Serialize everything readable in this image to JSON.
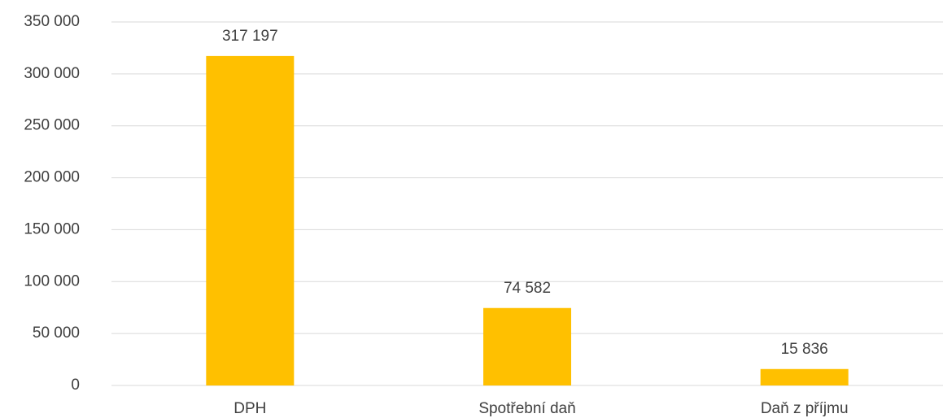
{
  "chart_data": {
    "type": "bar",
    "categories": [
      "DPH",
      "Spotřební daň",
      "Daň z příjmu"
    ],
    "values": [
      317197,
      74582,
      15836
    ],
    "value_labels": [
      "317 197",
      "74 582",
      "15 836"
    ],
    "color": "#ffc000",
    "ylim": [
      0,
      350000
    ],
    "yticks": [
      {
        "value": 0,
        "label": "0"
      },
      {
        "value": 50000,
        "label": "50 000"
      },
      {
        "value": 100000,
        "label": "100 000"
      },
      {
        "value": 150000,
        "label": "150 000"
      },
      {
        "value": 200000,
        "label": "200 000"
      },
      {
        "value": 250000,
        "label": "250 000"
      },
      {
        "value": 300000,
        "label": "300 000"
      },
      {
        "value": 350000,
        "label": "350 000"
      }
    ],
    "grid": true
  }
}
